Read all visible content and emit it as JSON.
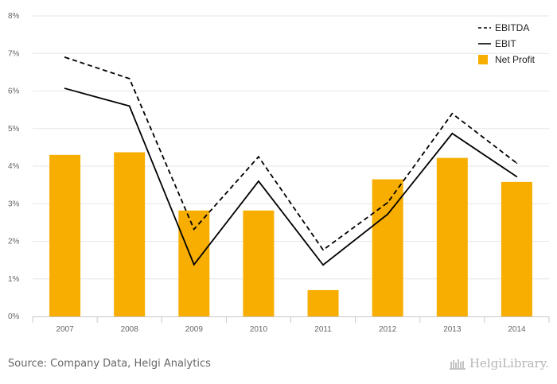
{
  "chart_data": {
    "type": "bar",
    "categories": [
      "2007",
      "2008",
      "2009",
      "2010",
      "2011",
      "2012",
      "2013",
      "2014"
    ],
    "series": [
      {
        "name": "Net Profit",
        "kind": "bar",
        "color": "#f7ae00",
        "values": [
          4.3,
          4.37,
          2.82,
          2.82,
          0.7,
          3.65,
          4.22,
          3.58
        ]
      },
      {
        "name": "EBIT",
        "kind": "line",
        "style": "solid",
        "color": "#000000",
        "values": [
          6.07,
          5.6,
          1.38,
          3.6,
          1.37,
          2.72,
          4.87,
          3.72
        ]
      },
      {
        "name": "EBITDA",
        "kind": "line",
        "style": "dashed",
        "color": "#000000",
        "values": [
          6.9,
          6.33,
          2.32,
          4.25,
          1.77,
          3.03,
          5.4,
          4.08
        ]
      }
    ],
    "ylim": [
      0,
      8
    ],
    "yticks": [
      "0%",
      "1%",
      "2%",
      "3%",
      "4%",
      "5%",
      "6%",
      "7%",
      "8%"
    ],
    "legend_position": "top-right",
    "legend": [
      "EBITDA",
      "EBIT",
      "Net Profit"
    ],
    "grid": true
  },
  "footer": {
    "source": "Source: Company Data, Helgi Analytics",
    "brand": "HelgiLibrary."
  }
}
